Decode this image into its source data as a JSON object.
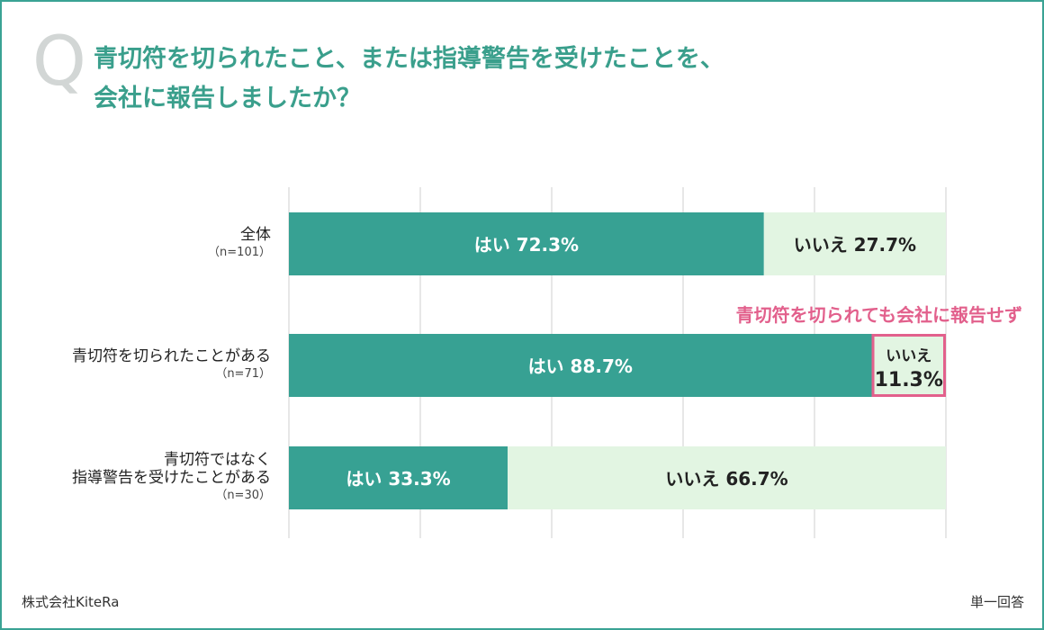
{
  "question": {
    "mark": "Q",
    "line1": "青切符を切られたこと、または指導警告を受けたことを、",
    "line2": "会社に報告しましたか？"
  },
  "chart_data": {
    "type": "bar",
    "orientation": "horizontal",
    "stacked": true,
    "xlim": [
      0,
      100
    ],
    "grid": true,
    "categories": [
      {
        "label_lines": [
          "全体"
        ],
        "n": "（n=101）"
      },
      {
        "label_lines": [
          "青切符を切られたことがある"
        ],
        "n": "（n=71）"
      },
      {
        "label_lines": [
          "青切符ではなく",
          "指導警告を受けたことがある"
        ],
        "n": "（n=30）"
      }
    ],
    "series": [
      {
        "name": "はい",
        "values": [
          72.3,
          88.7,
          33.3
        ],
        "color": "#37a193",
        "text_color": "#ffffff"
      },
      {
        "name": "いいえ",
        "values": [
          27.7,
          11.3,
          66.7
        ],
        "color": "#e2f5e2",
        "text_color": "#222222"
      }
    ],
    "percent_sign": "%",
    "annotation": {
      "text": "青切符を切られても会社に報告せず",
      "color": "#e2608c",
      "target_category": 1,
      "target_series": 1
    }
  },
  "footer": {
    "company": "株式会社KiteRa",
    "answer_type": "単一回答"
  }
}
